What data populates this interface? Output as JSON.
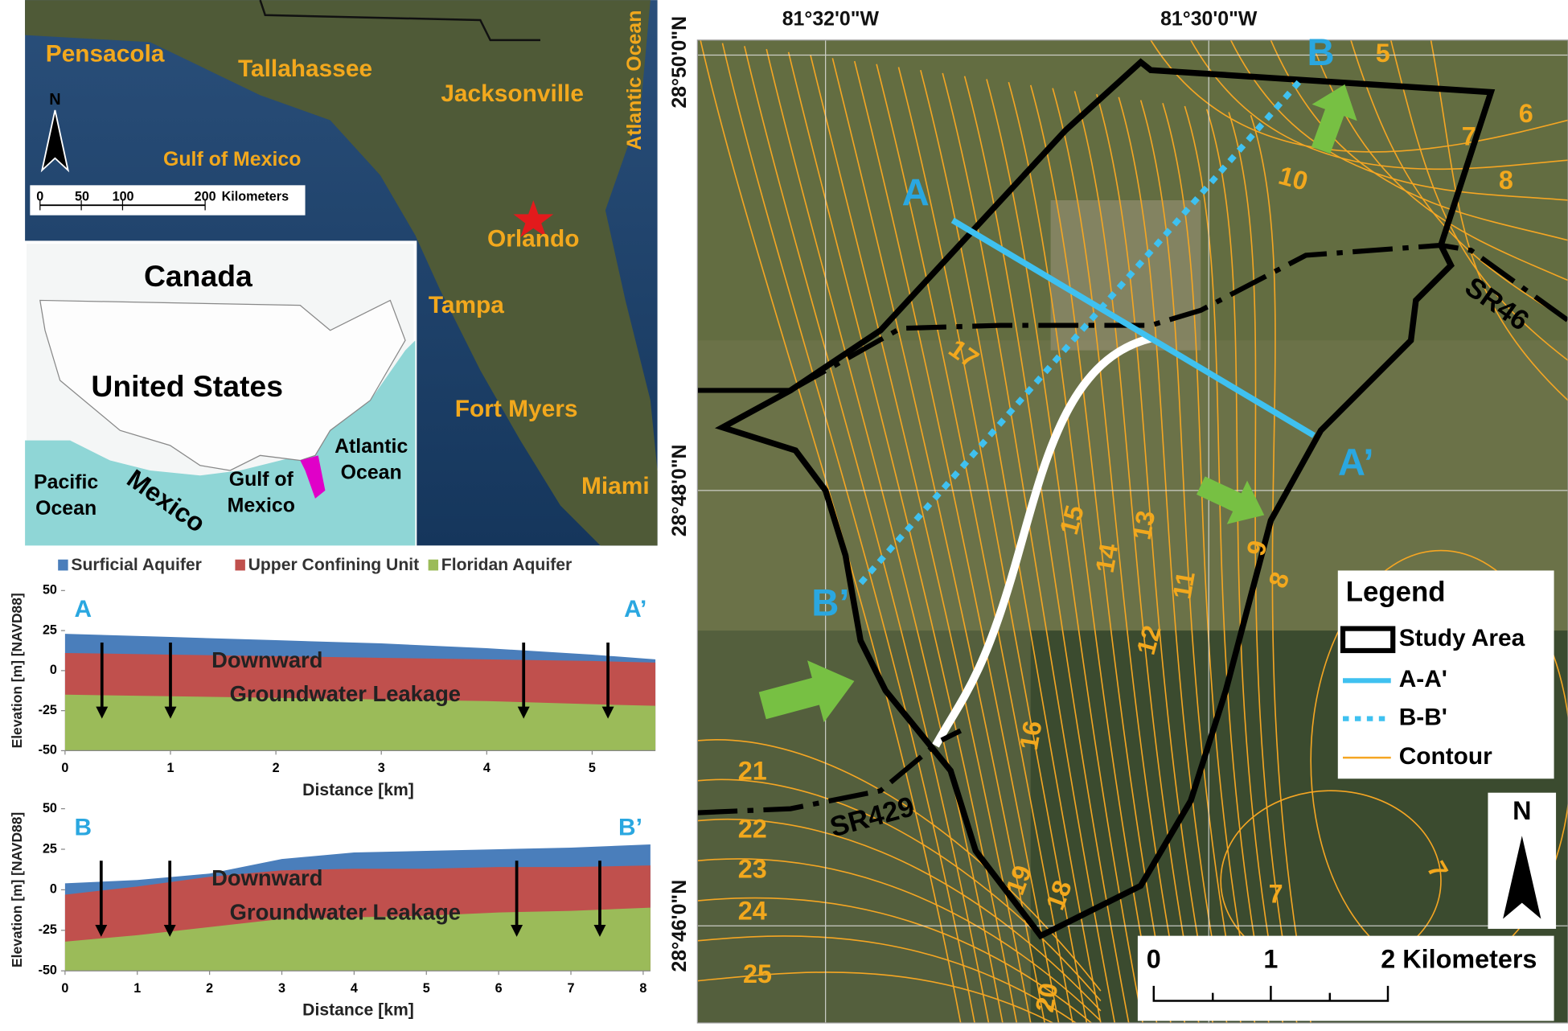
{
  "florida_map": {
    "labels": [
      "Pensacola",
      "Tallahassee",
      "Jacksonville",
      "Atlantic Ocean",
      "Gulf of Mexico",
      "Orlando",
      "Tampa",
      "Fort Myers",
      "Miami"
    ],
    "north": "N",
    "scale_ticks": [
      0,
      50,
      100,
      200
    ],
    "scale_unit": "Kilometers"
  },
  "us_map": {
    "labels": [
      [
        "Canada"
      ],
      [
        "United States"
      ],
      [
        "Pacific",
        "Ocean"
      ],
      [
        "Mexico"
      ],
      [
        "Gulf of",
        "Mexico"
      ],
      [
        "Atlantic",
        "Ocean"
      ]
    ]
  },
  "cross_sections": {
    "legend": [
      {
        "name": "Surficial Aquifer",
        "color": "#4a7ebb"
      },
      {
        "name": "Upper Confining Unit",
        "color": "#c0504d"
      },
      {
        "name": "Floridan Aquifer",
        "color": "#9bbb59"
      }
    ],
    "ylabel": "Elevation [m] [NAVD88]",
    "xlabel": "Distance [km]",
    "annotation": [
      "Downward",
      "Groundwater Leakage"
    ],
    "panels": [
      {
        "start": "A",
        "end": "A’",
        "xlim": [
          0,
          5.6
        ],
        "xticks": [
          0,
          1,
          2,
          3,
          4,
          5
        ],
        "ylim": [
          -50,
          50
        ],
        "yticks": [
          -50,
          -25,
          0,
          25,
          50
        ],
        "x": [
          0,
          1,
          2,
          3,
          4,
          5,
          5.6
        ],
        "layers": [
          [
            23,
            21,
            19,
            17,
            14,
            10,
            7
          ],
          [
            11,
            10,
            9,
            8,
            7,
            6,
            5
          ],
          [
            -15,
            -16,
            -17,
            -18,
            -19,
            -21,
            -22
          ]
        ],
        "arrows_x": [
          0.35,
          1,
          4.35,
          5.15
        ]
      },
      {
        "start": "B",
        "end": "B’",
        "xlim": [
          0,
          8.1
        ],
        "xticks": [
          0,
          1,
          2,
          3,
          4,
          5,
          6,
          7,
          8
        ],
        "ylim": [
          -50,
          50
        ],
        "yticks": [
          -50,
          -25,
          0,
          25,
          50
        ],
        "x": [
          0,
          1,
          2,
          3,
          4,
          5,
          6,
          7,
          8.1
        ],
        "layers": [
          [
            4,
            6,
            10,
            19,
            23,
            24,
            25,
            26,
            28
          ],
          [
            -3,
            2,
            8,
            12,
            13,
            13,
            14,
            14,
            15
          ],
          [
            -32,
            -28,
            -23,
            -18,
            -17,
            -16,
            -14,
            -13,
            -11
          ]
        ],
        "arrows_x": [
          0.5,
          1.45,
          6.25,
          7.4
        ]
      }
    ]
  },
  "study_map": {
    "lon_labels": [
      "81°32'0\"W",
      "81°30'0\"W"
    ],
    "lat_labels": [
      "28°50'0\"N",
      "28°48'0\"N",
      "28°46'0\"N"
    ],
    "section_labels": [
      "A",
      "A’",
      "B",
      "B’"
    ],
    "road_labels": [
      "SR46",
      "SR429"
    ],
    "contour_labels": [
      5,
      6,
      7,
      8,
      10,
      17,
      15,
      13,
      14,
      11,
      12,
      9,
      8,
      16,
      21,
      22,
      23,
      24,
      25,
      19,
      18,
      20,
      7,
      7
    ],
    "legend": {
      "title": "Legend",
      "items": [
        "Study Area",
        "A-A'",
        "B-B'",
        "Contour"
      ]
    },
    "north": "N",
    "scale_ticks": [
      "0",
      "1",
      "2 Kilometers"
    ]
  }
}
